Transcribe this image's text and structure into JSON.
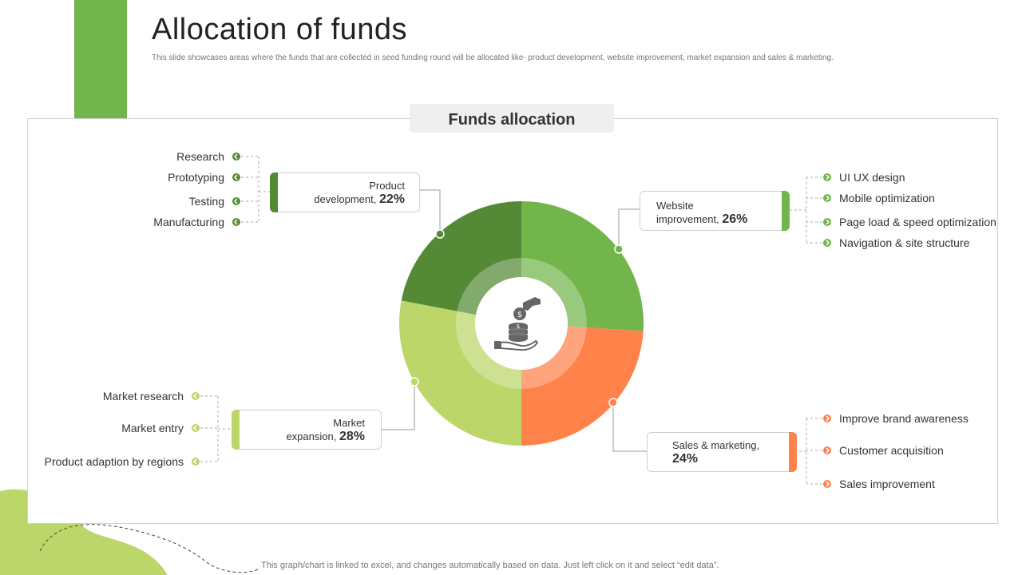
{
  "slide": {
    "title": "Allocation of funds",
    "subtitle": "This slide showcases areas where the funds that are collected in seed funding round will be allocated like- product development, website improvement, market expansion and sales & marketing.",
    "panel_title": "Funds allocation",
    "footer": "This graph/chart is linked to excel, and changes automatically based on data. Just left click on it and select “edit data”."
  },
  "icons": {
    "center": "money-in-hand-icon",
    "bullet": "arrow-bullet-icon"
  },
  "colors": {
    "accent": "#71b54b",
    "product_development": "#548a35",
    "website_improvement": "#71b54b",
    "sales_marketing": "#ff824a",
    "market_expansion": "#bcd66a"
  },
  "segments": {
    "product": {
      "line1": "Product",
      "line2": "development,",
      "pct": "22%"
    },
    "website": {
      "line1": "Website",
      "line2": "improvement,",
      "pct": "26%"
    },
    "sales": {
      "line1": "Sales & marketing,",
      "pct": "24%"
    },
    "market": {
      "line1": "Market",
      "line2": "expansion,",
      "pct": "28%"
    }
  },
  "subitems": {
    "product": [
      "Research",
      "Prototyping",
      "Testing",
      "Manufacturing"
    ],
    "website": [
      "UI UX design",
      "Mobile optimization",
      "Page load & speed optimization",
      "Navigation  & site structure"
    ],
    "sales": [
      "Improve  brand awareness",
      "Customer acquisition",
      "Sales improvement"
    ],
    "market": [
      "Market research",
      "Market entry",
      "Product adaption  by regions"
    ]
  },
  "chart_data": {
    "type": "pie",
    "title": "Funds allocation",
    "categories": [
      "Website improvement",
      "Sales & marketing",
      "Market expansion",
      "Product development"
    ],
    "values": [
      26,
      24,
      28,
      22
    ],
    "colors": [
      "#71b54b",
      "#ff824a",
      "#bcd66a",
      "#548a35"
    ],
    "donut": true
  }
}
